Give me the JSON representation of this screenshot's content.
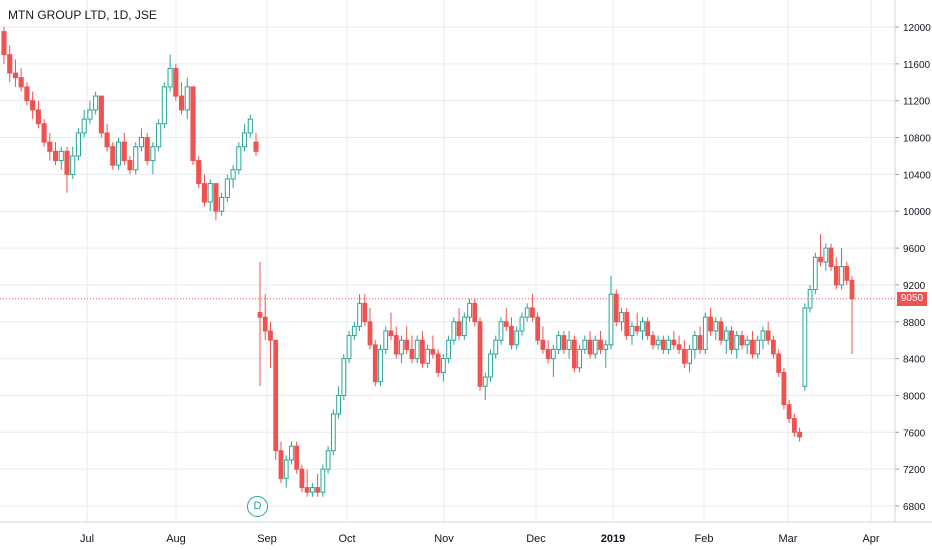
{
  "title": "MTN GROUP LTD, 1D, JSE",
  "colors": {
    "up": "#26a69a",
    "down": "#ef5350",
    "grid": "#e8ebef",
    "axis_text": "#131722",
    "price_line": "#ef5350"
  },
  "current_price_label": "9050",
  "dividend_marker": {
    "label": "D",
    "date": "Aug 30, 2018"
  },
  "chart_data": {
    "type": "candlestick",
    "title": "MTN GROUP LTD, 1D, JSE",
    "y_range": [
      6650,
      12100
    ],
    "y_ticks": [
      6800,
      7200,
      7600,
      8000,
      8400,
      8800,
      9200,
      9600,
      10000,
      10400,
      10800,
      11200,
      11600,
      12000
    ],
    "x_ticks": [
      "Jul",
      "Aug",
      "Sep",
      "Oct",
      "Nov",
      "Dec",
      "2019",
      "Feb",
      "Mar",
      "Apr"
    ],
    "last_price": 9050,
    "grid": true,
    "segments": [
      {
        "period": "Jun 18 – Aug 31, 2018",
        "candles_ohlc": [
          [
            11950,
            12000,
            11600,
            11700
          ],
          [
            11700,
            11800,
            11400,
            11500
          ],
          [
            11500,
            11650,
            11350,
            11450
          ],
          [
            11450,
            11550,
            11300,
            11350
          ],
          [
            11350,
            11400,
            11150,
            11200
          ],
          [
            11200,
            11300,
            11000,
            11100
          ],
          [
            11100,
            11200,
            10900,
            10950
          ],
          [
            10950,
            11000,
            10700,
            10750
          ],
          [
            10750,
            10850,
            10550,
            10650
          ],
          [
            10650,
            10750,
            10500,
            10550
          ],
          [
            10550,
            10700,
            10450,
            10650
          ],
          [
            10650,
            10700,
            10200,
            10400
          ],
          [
            10400,
            10700,
            10350,
            10600
          ],
          [
            10600,
            10900,
            10550,
            10850
          ],
          [
            10850,
            11100,
            10800,
            11000
          ],
          [
            11000,
            11200,
            10950,
            11100
          ],
          [
            11100,
            11300,
            11050,
            11250
          ],
          [
            11250,
            11200,
            10800,
            10850
          ],
          [
            10850,
            10950,
            10650,
            10700
          ],
          [
            10700,
            10750,
            10450,
            10500
          ],
          [
            10500,
            10800,
            10450,
            10750
          ],
          [
            10750,
            10850,
            10500,
            10550
          ],
          [
            10550,
            10600,
            10400,
            10450
          ],
          [
            10450,
            10750,
            10400,
            10700
          ],
          [
            10700,
            10900,
            10650,
            10800
          ],
          [
            10800,
            10850,
            10500,
            10550
          ],
          [
            10550,
            10750,
            10400,
            10700
          ],
          [
            10700,
            11000,
            10650,
            10950
          ],
          [
            10950,
            11400,
            10900,
            11350
          ],
          [
            11350,
            11700,
            11300,
            11550
          ],
          [
            11550,
            11600,
            11200,
            11250
          ],
          [
            11250,
            11400,
            11050,
            11100
          ],
          [
            11100,
            11450,
            11000,
            11350
          ],
          [
            11350,
            11350,
            10500,
            10550
          ],
          [
            10550,
            10600,
            10250,
            10300
          ],
          [
            10300,
            10400,
            10050,
            10100
          ],
          [
            10100,
            10350,
            10000,
            10300
          ],
          [
            10300,
            10300,
            9900,
            10000
          ],
          [
            10000,
            10200,
            9950,
            10150
          ],
          [
            10150,
            10400,
            10100,
            10350
          ],
          [
            10350,
            10500,
            10250,
            10450
          ],
          [
            10450,
            10750,
            10400,
            10700
          ],
          [
            10700,
            10950,
            10650,
            10850
          ],
          [
            10850,
            11050,
            10800,
            11000
          ],
          [
            10750,
            10850,
            10600,
            10650
          ]
        ]
      },
      {
        "period": "Sep 3, 2018 – Mar 25, 2019",
        "candles_ohlc": [
          [
            8900,
            9450,
            8100,
            8850
          ],
          [
            8850,
            9100,
            8600,
            8700
          ],
          [
            8700,
            8800,
            8300,
            8600
          ],
          [
            8600,
            8600,
            7300,
            7400
          ],
          [
            7400,
            7500,
            7050,
            7100
          ],
          [
            7100,
            7350,
            7000,
            7300
          ],
          [
            7300,
            7500,
            7250,
            7450
          ],
          [
            7450,
            7500,
            7150,
            7200
          ],
          [
            7200,
            7250,
            6950,
            7000
          ],
          [
            7000,
            7200,
            6900,
            6950
          ],
          [
            6950,
            7050,
            6900,
            7000
          ],
          [
            7000,
            7150,
            6900,
            6950
          ],
          [
            6950,
            7250,
            6900,
            7200
          ],
          [
            7200,
            7450,
            7150,
            7400
          ],
          [
            7400,
            7850,
            7350,
            7800
          ],
          [
            7800,
            8100,
            7750,
            8000
          ],
          [
            8000,
            8450,
            7950,
            8400
          ],
          [
            8400,
            8700,
            8350,
            8650
          ],
          [
            8650,
            8800,
            8600,
            8750
          ],
          [
            8750,
            9100,
            8700,
            9000
          ],
          [
            9000,
            9100,
            8750,
            8800
          ],
          [
            8800,
            8950,
            8500,
            8550
          ],
          [
            8550,
            8600,
            8100,
            8150
          ],
          [
            8150,
            8550,
            8100,
            8500
          ],
          [
            8500,
            8750,
            8450,
            8700
          ],
          [
            8700,
            8900,
            8600,
            8650
          ],
          [
            8650,
            8750,
            8400,
            8450
          ],
          [
            8450,
            8650,
            8350,
            8600
          ],
          [
            8600,
            8750,
            8450,
            8500
          ],
          [
            8500,
            8650,
            8350,
            8400
          ],
          [
            8400,
            8650,
            8350,
            8600
          ],
          [
            8600,
            8700,
            8300,
            8350
          ],
          [
            8350,
            8550,
            8300,
            8500
          ],
          [
            8500,
            8650,
            8400,
            8450
          ],
          [
            8450,
            8500,
            8200,
            8250
          ],
          [
            8250,
            8450,
            8150,
            8400
          ],
          [
            8400,
            8650,
            8350,
            8600
          ],
          [
            8600,
            8850,
            8550,
            8800
          ],
          [
            8800,
            8950,
            8600,
            8650
          ],
          [
            8650,
            8900,
            8600,
            8850
          ],
          [
            8850,
            9050,
            8800,
            9000
          ],
          [
            9000,
            9050,
            8750,
            8800
          ],
          [
            8800,
            8850,
            8050,
            8100
          ],
          [
            8100,
            8250,
            7950,
            8200
          ],
          [
            8200,
            8500,
            8150,
            8450
          ],
          [
            8450,
            8650,
            8400,
            8600
          ],
          [
            8600,
            8850,
            8550,
            8800
          ],
          [
            8800,
            8950,
            8700,
            8750
          ],
          [
            8750,
            8850,
            8500,
            8550
          ],
          [
            8550,
            8750,
            8500,
            8700
          ],
          [
            8700,
            8900,
            8650,
            8850
          ],
          [
            8850,
            9000,
            8800,
            8950
          ],
          [
            8950,
            9100,
            8800,
            8850
          ],
          [
            8850,
            8900,
            8550,
            8600
          ],
          [
            8600,
            8750,
            8450,
            8500
          ],
          [
            8500,
            8600,
            8350,
            8400
          ],
          [
            8400,
            8550,
            8200,
            8500
          ],
          [
            8500,
            8700,
            8450,
            8650
          ],
          [
            8650,
            8700,
            8450,
            8500
          ],
          [
            8500,
            8700,
            8400,
            8600
          ],
          [
            8600,
            8650,
            8250,
            8300
          ],
          [
            8300,
            8550,
            8250,
            8500
          ],
          [
            8500,
            8650,
            8450,
            8600
          ],
          [
            8600,
            8700,
            8400,
            8450
          ],
          [
            8450,
            8650,
            8400,
            8600
          ],
          [
            8600,
            8700,
            8450,
            8500
          ],
          [
            8500,
            8600,
            8300,
            8550
          ],
          [
            8550,
            9300,
            8500,
            9100
          ],
          [
            9100,
            9150,
            8750,
            8800
          ],
          [
            8800,
            8950,
            8700,
            8900
          ],
          [
            8900,
            8950,
            8600,
            8650
          ],
          [
            8650,
            8800,
            8550,
            8750
          ],
          [
            8750,
            8900,
            8650,
            8700
          ],
          [
            8700,
            8850,
            8600,
            8800
          ],
          [
            8800,
            8850,
            8600,
            8650
          ],
          [
            8650,
            8700,
            8500,
            8550
          ],
          [
            8550,
            8650,
            8500,
            8600
          ],
          [
            8600,
            8650,
            8450,
            8500
          ],
          [
            8500,
            8650,
            8450,
            8600
          ],
          [
            8600,
            8700,
            8500,
            8550
          ],
          [
            8550,
            8650,
            8450,
            8500
          ],
          [
            8500,
            8600,
            8300,
            8350
          ],
          [
            8350,
            8550,
            8250,
            8500
          ],
          [
            8500,
            8700,
            8400,
            8650
          ],
          [
            8650,
            8750,
            8450,
            8500
          ],
          [
            8500,
            8900,
            8450,
            8850
          ],
          [
            8850,
            8950,
            8650,
            8700
          ],
          [
            8700,
            8850,
            8600,
            8800
          ],
          [
            8800,
            8850,
            8550,
            8600
          ],
          [
            8600,
            8750,
            8450,
            8700
          ],
          [
            8700,
            8750,
            8450,
            8500
          ],
          [
            8500,
            8700,
            8400,
            8650
          ],
          [
            8650,
            8700,
            8500,
            8550
          ],
          [
            8550,
            8650,
            8450,
            8600
          ],
          [
            8600,
            8700,
            8400,
            8450
          ],
          [
            8450,
            8650,
            8400,
            8600
          ],
          [
            8600,
            8750,
            8500,
            8700
          ],
          [
            8700,
            8800,
            8550,
            8600
          ],
          [
            8600,
            8650,
            8400,
            8450
          ],
          [
            8450,
            8500,
            8200,
            8250
          ],
          [
            8250,
            8300,
            7850,
            7900
          ],
          [
            7900,
            7950,
            7700,
            7750
          ],
          [
            7750,
            7800,
            7550,
            7600
          ],
          [
            7600,
            7650,
            7500,
            7550
          ],
          [
            8100,
            9000,
            8050,
            8950
          ],
          [
            8950,
            9200,
            8900,
            9150
          ],
          [
            9150,
            9550,
            9100,
            9500
          ],
          [
            9500,
            9750,
            9400,
            9450
          ],
          [
            9450,
            9650,
            9350,
            9600
          ],
          [
            9600,
            9650,
            9350,
            9400
          ],
          [
            9400,
            9500,
            9150,
            9200
          ],
          [
            9200,
            9600,
            9150,
            9400
          ],
          [
            9400,
            9450,
            9200,
            9250
          ],
          [
            9250,
            9300,
            8450,
            9050
          ]
        ]
      }
    ]
  }
}
